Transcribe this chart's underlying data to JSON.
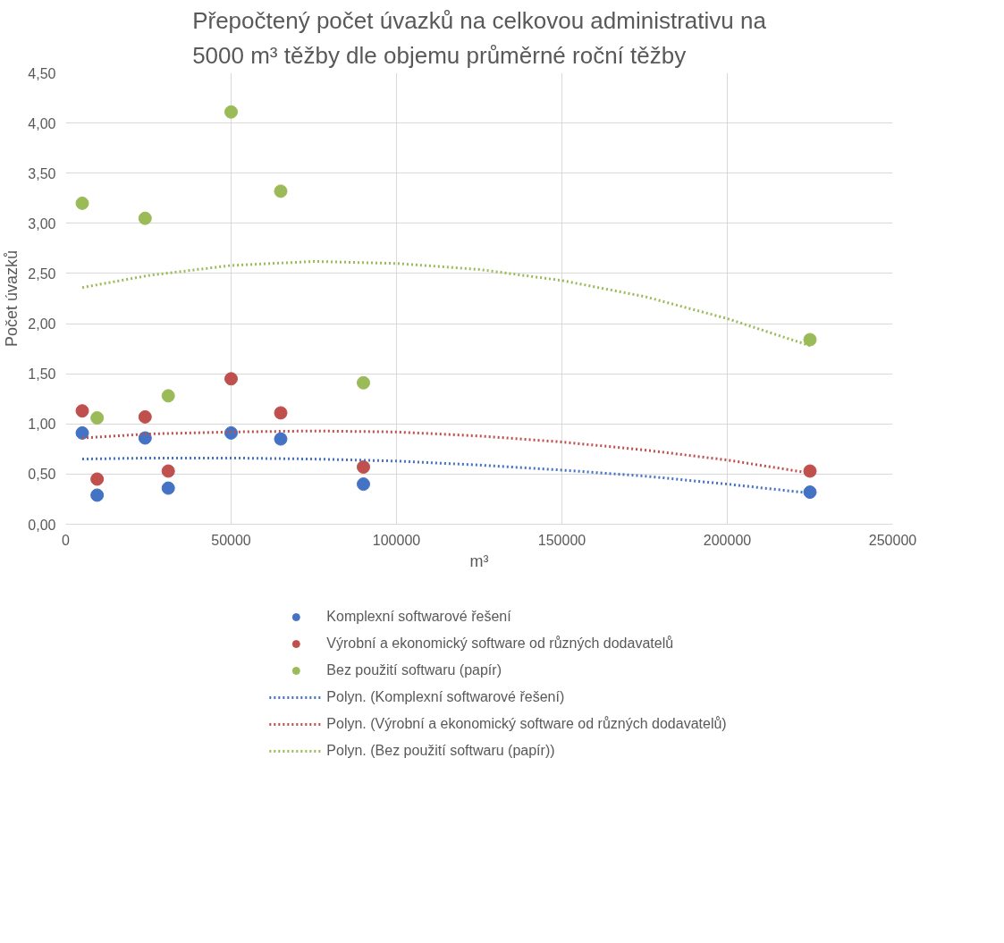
{
  "chart_data": {
    "type": "scatter",
    "title": "Přepočtený počet úvazků na celkovou administrativu na 5000 m³ těžby dle objemu průměrné roční těžby",
    "xlabel": "m³",
    "ylabel": "Počet úvazků",
    "xlim": [
      0,
      250000
    ],
    "xticks": [
      0,
      50000,
      100000,
      150000,
      200000,
      250000
    ],
    "ylim": [
      0,
      4.5
    ],
    "yticks": [
      {
        "value": 0,
        "label": "0,00"
      },
      {
        "value": 0.5,
        "label": "0,50"
      },
      {
        "value": 1,
        "label": "1,00"
      },
      {
        "value": 1.5,
        "label": "1,50"
      },
      {
        "value": 2,
        "label": "2,00"
      },
      {
        "value": 2.5,
        "label": "2,50"
      },
      {
        "value": 3,
        "label": "3,00"
      },
      {
        "value": 3.5,
        "label": "3,50"
      },
      {
        "value": 4,
        "label": "4,00"
      },
      {
        "value": 4.5,
        "label": "4,50"
      }
    ],
    "grid": true,
    "legend": "bottom",
    "marker": "circle",
    "series": [
      {
        "name": "Komplexní softwarové řešení",
        "color": "#4472c4",
        "x": [
          5000,
          9500,
          24000,
          31000,
          50000,
          65000,
          90000,
          225000
        ],
        "values": [
          0.91,
          0.29,
          0.86,
          0.36,
          0.91,
          0.85,
          0.4,
          0.32
        ]
      },
      {
        "name": "Výrobní a ekonomický software od různých dodavatelů",
        "color": "#c0504d",
        "x": [
          5000,
          9500,
          24000,
          31000,
          50000,
          65000,
          90000,
          225000
        ],
        "values": [
          1.13,
          0.45,
          1.07,
          0.53,
          1.45,
          1.11,
          0.57,
          0.53
        ]
      },
      {
        "name": "Bez použití softwaru (papír)",
        "color": "#9bbb59",
        "x": [
          5000,
          9500,
          24000,
          31000,
          50000,
          65000,
          90000,
          225000
        ],
        "values": [
          3.2,
          1.06,
          3.05,
          1.28,
          4.11,
          3.32,
          1.41,
          1.84
        ]
      },
      {
        "name": "Polyn. (Komplexní softwarové řešení)",
        "type": "line",
        "marker": "none",
        "line_style": "dotted",
        "color": "#4472c4",
        "x": [
          5000,
          25000,
          50000,
          75000,
          100000,
          125000,
          150000,
          175000,
          200000,
          225000
        ],
        "values": [
          0.65,
          0.66,
          0.66,
          0.65,
          0.63,
          0.59,
          0.54,
          0.48,
          0.4,
          0.31
        ]
      },
      {
        "name": "Polyn. (Výrobní a ekonomický software od různých dodavatelů)",
        "type": "line",
        "marker": "none",
        "line_style": "dotted",
        "color": "#c0504d",
        "x": [
          5000,
          25000,
          50000,
          75000,
          100000,
          125000,
          150000,
          175000,
          200000,
          225000
        ],
        "values": [
          0.86,
          0.9,
          0.92,
          0.93,
          0.92,
          0.88,
          0.82,
          0.74,
          0.64,
          0.51
        ]
      },
      {
        "name": "Polyn. (Bez použití softwaru (papír))",
        "type": "line",
        "marker": "none",
        "line_style": "dotted",
        "color": "#9bbb59",
        "x": [
          5000,
          25000,
          50000,
          75000,
          100000,
          125000,
          150000,
          175000,
          200000,
          225000
        ],
        "values": [
          2.36,
          2.48,
          2.58,
          2.62,
          2.6,
          2.54,
          2.43,
          2.27,
          2.05,
          1.78
        ]
      }
    ]
  }
}
